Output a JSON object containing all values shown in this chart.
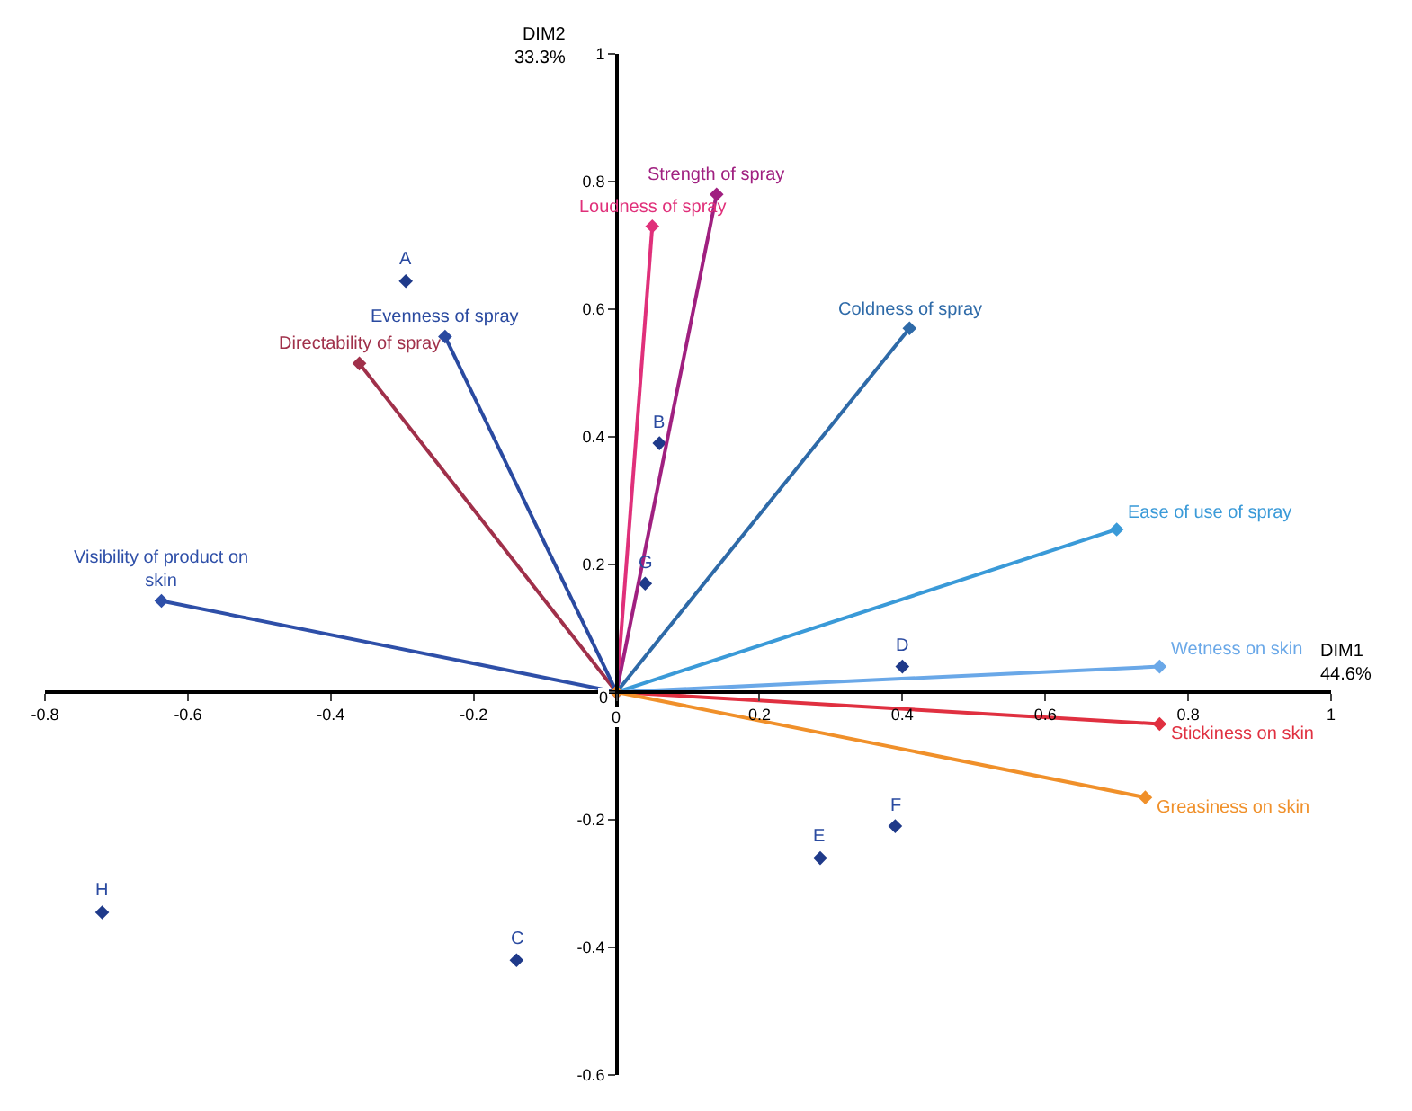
{
  "chart_data": {
    "type": "scatter",
    "xlabel": "DIM1\n44.6%",
    "ylabel": "DIM2\n33.3%",
    "xlim": [
      -0.8,
      1
    ],
    "ylim": [
      -0.6,
      1
    ],
    "xticks": [
      -0.8,
      -0.6,
      -0.4,
      -0.2,
      0,
      0.2,
      0.4,
      0.6,
      0.8,
      1
    ],
    "yticks": [
      -0.6,
      -0.4,
      -0.2,
      0,
      0.2,
      0.4,
      0.6,
      0.8,
      1
    ],
    "grid": false,
    "marker": "diamond",
    "line_style": "solid",
    "series": [
      {
        "color": "#1f3a8a",
        "x": [
          -0.295,
          0.06,
          -0.14,
          0.4,
          0.285,
          0.39,
          0.04,
          -0.72
        ],
        "values": [
          0.644,
          0.39,
          -0.42,
          0.04,
          -0.26,
          -0.21,
          0.17,
          -0.345
        ]
      },
      {
        "type": "line",
        "name": "Visibility of product on skin",
        "color": "#2e4fa8",
        "x": [
          0,
          -0.637
        ],
        "values": [
          0,
          0.143
        ]
      },
      {
        "type": "line",
        "name": "Directability of spray",
        "color": "#a0304a",
        "x": [
          0,
          -0.36
        ],
        "values": [
          0,
          0.515
        ]
      },
      {
        "type": "line",
        "name": "Evenness of spray",
        "color": "#2a4aa0",
        "x": [
          0,
          -0.24
        ],
        "values": [
          0,
          0.557
        ]
      },
      {
        "type": "line",
        "name": "Loudness of spray",
        "color": "#e0307a",
        "x": [
          0,
          0.05
        ],
        "values": [
          0,
          0.73
        ]
      },
      {
        "type": "line",
        "name": "Strength of spray",
        "color": "#a02080",
        "x": [
          0,
          0.14
        ],
        "values": [
          0,
          0.78
        ]
      },
      {
        "type": "line",
        "name": "Coldness of spray",
        "color": "#2e6aa8",
        "x": [
          0,
          0.41
        ],
        "values": [
          0,
          0.57
        ]
      },
      {
        "type": "line",
        "name": "Ease of use of spray",
        "color": "#3a9ad8",
        "x": [
          0,
          0.7
        ],
        "values": [
          0,
          0.255
        ]
      },
      {
        "type": "line",
        "name": "Wetness on skin",
        "color": "#6aa8e8",
        "x": [
          0,
          0.76
        ],
        "values": [
          0,
          0.04
        ]
      },
      {
        "type": "line",
        "name": "Stickiness on skin",
        "color": "#e03040",
        "x": [
          0,
          0.76
        ],
        "values": [
          0,
          -0.05
        ]
      },
      {
        "type": "line",
        "name": "Greasiness on skin",
        "color": "#f0902a",
        "x": [
          0,
          0.74
        ],
        "values": [
          0,
          -0.165
        ]
      }
    ],
    "annotations": [
      {
        "text": "A",
        "x": -0.295,
        "y": 0.644
      },
      {
        "text": "B",
        "x": 0.06,
        "y": 0.39
      },
      {
        "text": "C",
        "x": -0.14,
        "y": -0.42
      },
      {
        "text": "D",
        "x": 0.4,
        "y": 0.04
      },
      {
        "text": "E",
        "x": 0.285,
        "y": -0.26
      },
      {
        "text": "F",
        "x": 0.39,
        "y": -0.21
      },
      {
        "text": "G",
        "x": 0.04,
        "y": 0.17
      },
      {
        "text": "H",
        "x": -0.72,
        "y": -0.345
      }
    ]
  }
}
